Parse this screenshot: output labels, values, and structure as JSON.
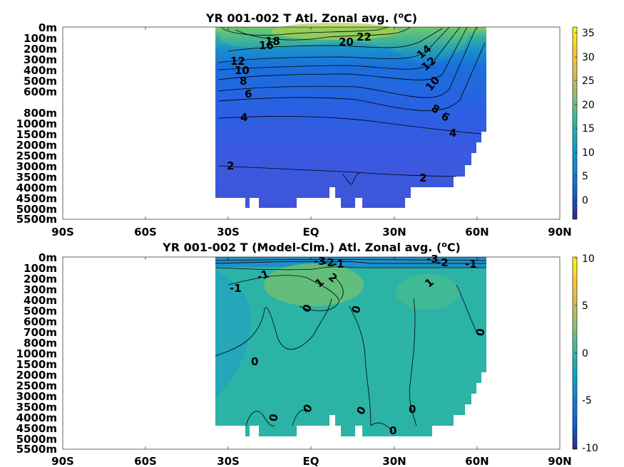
{
  "chart_data": [
    {
      "type": "heatmap",
      "title_main": "YR 001-002 T Atl. Zonal avg. (",
      "title_sup": "o",
      "title_end": "C)",
      "x_ticks": [
        "90S",
        "60S",
        "30S",
        "EQ",
        "30N",
        "60N",
        "90N"
      ],
      "y_ticks": [
        "0m",
        "100m",
        "200m",
        "300m",
        "400m",
        "500m",
        "600m",
        "800m",
        "1000m",
        "1500m",
        "2000m",
        "2500m",
        "3000m",
        "3500m",
        "4000m",
        "4500m",
        "5000m",
        "5500m"
      ],
      "colorbar_ticks": [
        "35",
        "30",
        "25",
        "20",
        "15",
        "10",
        "5",
        "0"
      ],
      "colorbar_range": [
        -3,
        36
      ],
      "contour_labels": [
        "22",
        "20",
        "18",
        "16",
        "14",
        "12",
        "12",
        "10",
        "10",
        "8",
        "8",
        "6",
        "6",
        "4",
        "4",
        "2",
        "2"
      ]
    },
    {
      "type": "heatmap",
      "title_main": "YR 001-002 T (Model-Clm.) Atl. Zonal avg. (",
      "title_sup": "o",
      "title_end": "C)",
      "x_ticks": [
        "90S",
        "60S",
        "30S",
        "EQ",
        "30N",
        "60N",
        "90N"
      ],
      "y_ticks": [
        "0m",
        "100m",
        "200m",
        "300m",
        "400m",
        "500m",
        "600m",
        "700m",
        "800m",
        "1000m",
        "1500m",
        "2000m",
        "2500m",
        "3000m",
        "3500m",
        "4000m",
        "4500m",
        "5000m",
        "5500m"
      ],
      "colorbar_ticks": [
        "10",
        "5",
        "0",
        "-5",
        "-10"
      ],
      "colorbar_range": [
        -10,
        10
      ],
      "contour_labels": [
        "-1",
        "-1",
        "-3",
        "-2",
        "-1",
        "-1",
        "-2",
        "-3",
        "1",
        "2",
        "1",
        "0",
        "0",
        "0",
        "0",
        "0",
        "0",
        "0",
        "0",
        "0",
        "0"
      ]
    }
  ]
}
